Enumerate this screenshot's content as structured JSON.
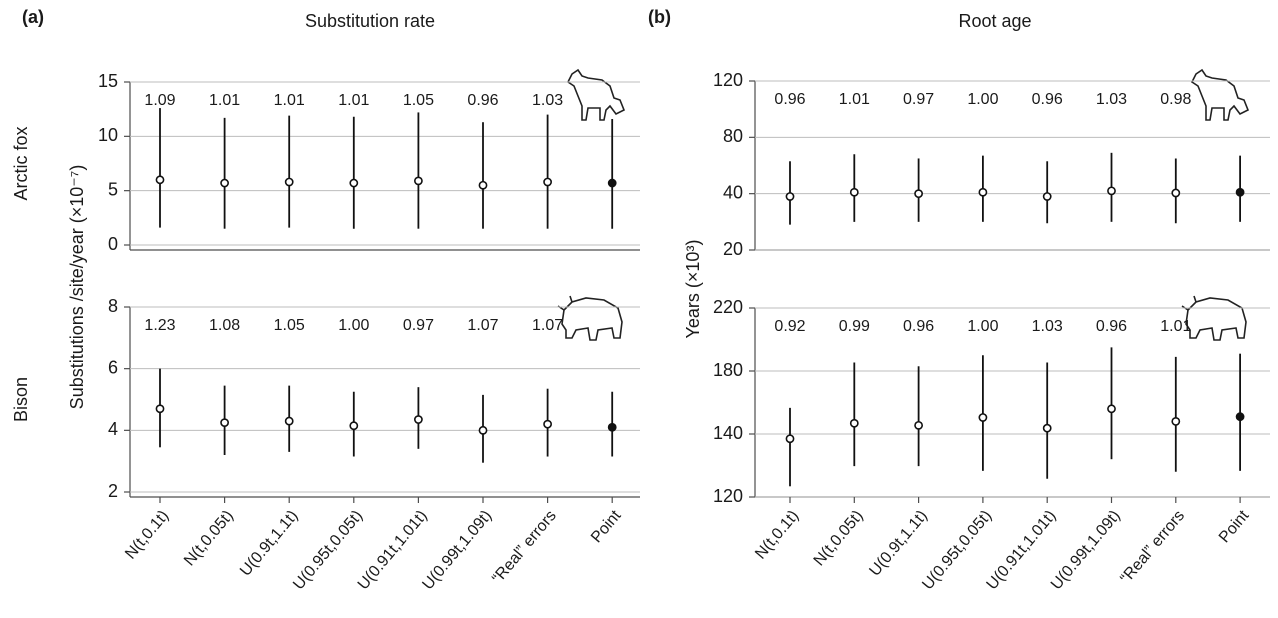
{
  "chart_data": [
    {
      "type": "errorbar",
      "panel_label": "(a)",
      "title": "Substitution rate",
      "ylabel": "Substitutions /site/year (×10⁻⁷)",
      "categories": [
        "N(t,0.1t)",
        "N(t,0.05t)",
        "U(0.9t,1.1t)",
        "U(0.95t,0.05t)",
        "U(0.91t,1.01t)",
        "U(0.99t,1.09t)",
        "“Real” errors",
        "Point"
      ],
      "rows": [
        {
          "ylim": [
            0,
            15
          ],
          "yticks": [
            0,
            5,
            10,
            15
          ],
          "series": [
            {
              "name": "Arctic fox",
              "color": "#111111",
              "values": [
                6.0,
                5.7,
                5.8,
                5.7,
                5.9,
                5.5,
                5.8,
                5.7
              ],
              "lower": [
                1.6,
                1.5,
                1.6,
                1.5,
                1.5,
                1.5,
                1.5,
                1.5
              ],
              "upper": [
                12.6,
                11.7,
                11.9,
                11.8,
                12.2,
                11.3,
                12.0,
                11.6
              ],
              "marker_colors": [
                "#ffffff",
                "#ffffff",
                "#ffffff",
                "#ffffff",
                "#ffffff",
                "#ffffff",
                "#ffffff",
                "#111111"
              ],
              "ratios": [
                1.09,
                1.01,
                1.01,
                1.01,
                1.05,
                0.96,
                1.03,
                null
              ],
              "ratio_labels": [
                "1.09",
                "1.01",
                "1.01",
                "1.01",
                "1.05",
                "0.96",
                "1.03",
                null
              ]
            }
          ]
        },
        {
          "ylim": [
            2,
            8
          ],
          "yticks": [
            2,
            4,
            6,
            8
          ],
          "series": [
            {
              "name": "Bison",
              "color": "#111111",
              "values": [
                4.7,
                4.25,
                4.3,
                4.15,
                4.35,
                4.0,
                4.2,
                4.1
              ],
              "lower": [
                3.45,
                3.2,
                3.3,
                3.15,
                3.4,
                2.95,
                3.15,
                3.15
              ],
              "upper": [
                6.0,
                5.45,
                5.45,
                5.25,
                5.4,
                5.15,
                5.35,
                5.25
              ],
              "marker_colors": [
                "#ffffff",
                "#ffffff",
                "#ffffff",
                "#ffffff",
                "#ffffff",
                "#ffffff",
                "#ffffff",
                "#111111"
              ],
              "ratios": [
                1.23,
                1.08,
                1.05,
                1.0,
                0.97,
                1.07,
                1.07,
                null
              ],
              "ratio_labels": [
                "1.23",
                "1.08",
                "1.05",
                "1.00",
                "0.97",
                "1.07",
                "1.07",
                null
              ]
            }
          ]
        }
      ]
    },
    {
      "type": "errorbar",
      "panel_label": "(b)",
      "title": "Root age",
      "ylabel": "Years (×10³)",
      "categories": [
        "N(t,0.1t)",
        "N(t,0.05t)",
        "U(0.9t,1.1t)",
        "U(0.95t,0.05t)",
        "U(0.91t,1.01t)",
        "U(0.99t,1.09t)",
        "“Real” errors",
        "Point"
      ],
      "rows": [
        {
          "ylim": [
            20,
            120
          ],
          "yticks": [
            20,
            40,
            80,
            120
          ],
          "series": [
            {
              "color": "#111111",
              "values": [
                39,
                41,
                40,
                41,
                39,
                42,
                40.5,
                41
              ],
              "lower": [
                29,
                30,
                30,
                30,
                29.5,
                30,
                29.5,
                30
              ],
              "upper": [
                63,
                68,
                65,
                67,
                63,
                69,
                65,
                67
              ],
              "marker_colors": [
                "#ffffff",
                "#ffffff",
                "#ffffff",
                "#ffffff",
                "#ffffff",
                "#ffffff",
                "#ffffff",
                "#111111"
              ],
              "ratios": [
                0.96,
                1.01,
                0.97,
                1.0,
                0.96,
                1.03,
                0.98,
                null
              ],
              "ratio_labels": [
                "0.96",
                "1.01",
                "0.97",
                "1.00",
                "0.96",
                "1.03",
                "0.98",
                null
              ]
            }
          ]
        },
        {
          "ylim": [
            120,
            220
          ],
          "yticks": [
            120,
            140,
            180,
            220
          ],
          "series": [
            {
              "color": "#111111",
              "values": [
                138.5,
                146.8,
                145.5,
                150.5,
                143.7,
                156,
                148,
                151
              ],
              "lower": [
                123.4,
                129.8,
                129.8,
                128.3,
                125.8,
                132,
                128,
                128.3
              ],
              "upper": [
                156.6,
                185.4,
                183,
                190,
                185.4,
                195,
                189,
                191
              ],
              "marker_colors": [
                "#ffffff",
                "#ffffff",
                "#ffffff",
                "#ffffff",
                "#ffffff",
                "#ffffff",
                "#ffffff",
                "#111111"
              ],
              "ratios": [
                0.92,
                0.99,
                0.96,
                1.0,
                1.03,
                0.96,
                1.01,
                null
              ],
              "ratio_labels": [
                "0.92",
                "0.99",
                "0.96",
                "1.00",
                "1.03",
                "0.96",
                "1.01",
                null
              ]
            }
          ]
        }
      ]
    }
  ]
}
